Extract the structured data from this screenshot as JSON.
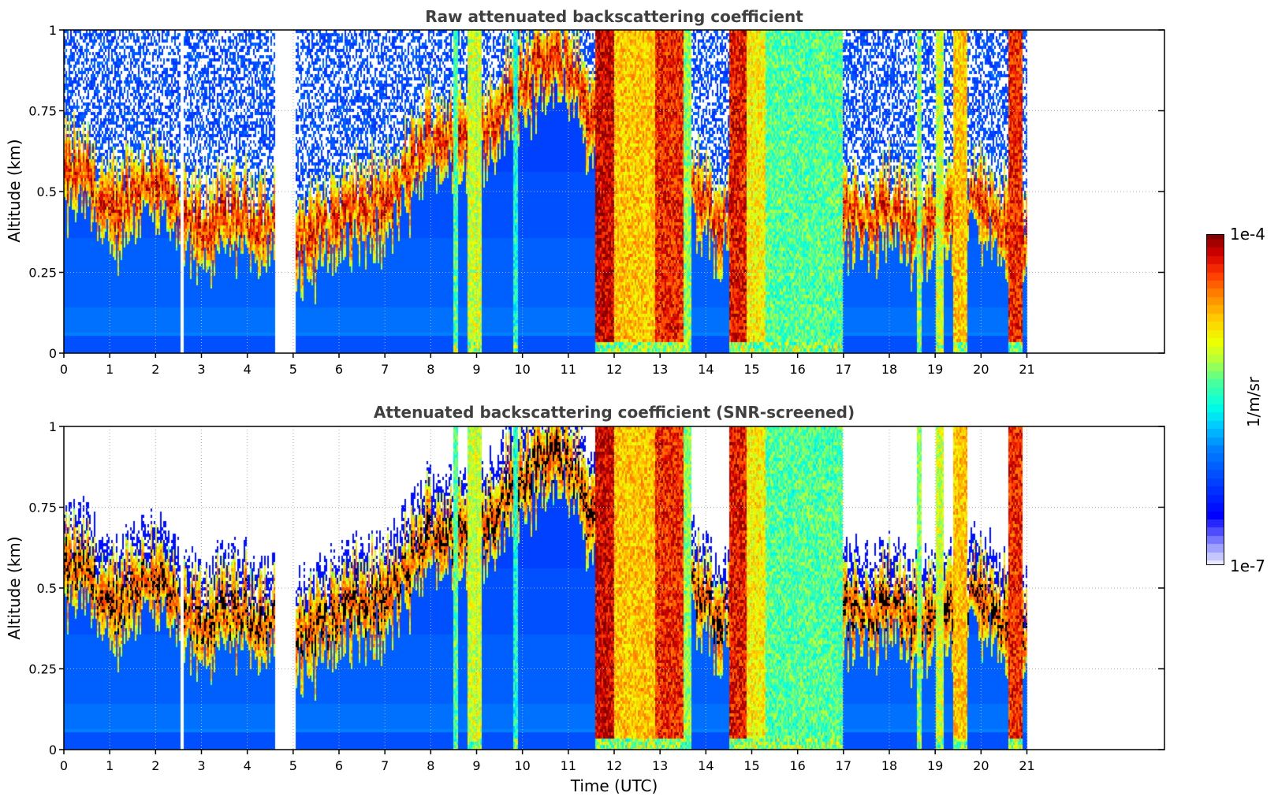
{
  "chart_data": [
    {
      "type": "heatmap",
      "title": "Raw attenuated backscattering coefficient",
      "xlabel": "",
      "ylabel": "Altitude (km)",
      "xlim": [
        0,
        24
      ],
      "ylim": [
        0,
        1
      ],
      "xticks": [
        "0",
        "1",
        "2",
        "3",
        "4",
        "5",
        "6",
        "7",
        "8",
        "9",
        "10",
        "11",
        "12",
        "13",
        "14",
        "15",
        "16",
        "17",
        "18",
        "19",
        "20",
        "21"
      ],
      "yticks": [
        "0",
        "0.25",
        "0.5",
        "0.75",
        "1"
      ],
      "grid": true,
      "screened": false
    },
    {
      "type": "heatmap",
      "title": "Attenuated backscattering coefficient (SNR-screened)",
      "xlabel": "Time (UTC)",
      "ylabel": "Altitude (km)",
      "xlim": [
        0,
        24
      ],
      "ylim": [
        0,
        1
      ],
      "xticks": [
        "0",
        "1",
        "2",
        "3",
        "4",
        "5",
        "6",
        "7",
        "8",
        "9",
        "10",
        "11",
        "12",
        "13",
        "14",
        "15",
        "16",
        "17",
        "18",
        "19",
        "20",
        "21"
      ],
      "yticks": [
        "0",
        "0.25",
        "0.5",
        "0.75",
        "1"
      ],
      "grid": true,
      "screened": true
    }
  ],
  "shared_data": {
    "data_end_hour": 21.0,
    "data_gap_hours": [
      [
        4.62,
        5.07
      ]
    ],
    "cloud_layer_km": [
      [
        0.0,
        0.55
      ],
      [
        0.5,
        0.55
      ],
      [
        1.0,
        0.42
      ],
      [
        1.5,
        0.5
      ],
      [
        2.0,
        0.55
      ],
      [
        2.5,
        0.42
      ],
      [
        3.0,
        0.38
      ],
      [
        3.5,
        0.42
      ],
      [
        4.0,
        0.42
      ],
      [
        4.6,
        0.38
      ],
      [
        5.1,
        0.36
      ],
      [
        5.5,
        0.37
      ],
      [
        6.0,
        0.42
      ],
      [
        6.5,
        0.45
      ],
      [
        7.0,
        0.45
      ],
      [
        7.5,
        0.55
      ],
      [
        8.0,
        0.68
      ],
      [
        8.5,
        0.65
      ],
      [
        9.0,
        0.68
      ],
      [
        9.5,
        0.75
      ],
      [
        10.0,
        0.85
      ],
      [
        10.5,
        0.9
      ],
      [
        11.0,
        0.9
      ],
      [
        11.6,
        0.7
      ],
      [
        12.0,
        0.6
      ],
      [
        13.0,
        0.55
      ],
      [
        13.5,
        0.52
      ],
      [
        14.0,
        0.45
      ],
      [
        14.5,
        0.4
      ],
      [
        15.0,
        0.35
      ],
      [
        15.5,
        0.38
      ],
      [
        16.0,
        0.42
      ],
      [
        16.5,
        0.43
      ],
      [
        17.0,
        0.45
      ],
      [
        17.5,
        0.42
      ],
      [
        18.0,
        0.45
      ],
      [
        18.5,
        0.38
      ],
      [
        19.0,
        0.45
      ],
      [
        19.5,
        0.42
      ],
      [
        20.0,
        0.5
      ],
      [
        20.5,
        0.4
      ],
      [
        21.0,
        0.35
      ]
    ],
    "precip_columns_hours": [
      [
        11.6,
        12.0,
        0.95
      ],
      [
        12.0,
        12.9,
        0.75
      ],
      [
        12.9,
        13.5,
        0.9
      ],
      [
        13.5,
        13.7,
        0.6
      ],
      [
        14.5,
        14.9,
        0.92
      ],
      [
        14.9,
        15.3,
        0.7
      ],
      [
        15.3,
        17.0,
        0.55
      ],
      [
        8.8,
        9.1,
        0.65
      ],
      [
        8.5,
        8.6,
        0.55
      ],
      [
        9.8,
        9.9,
        0.5
      ],
      [
        18.6,
        18.7,
        0.6
      ],
      [
        19.0,
        19.2,
        0.65
      ],
      [
        19.4,
        19.7,
        0.75
      ],
      [
        20.6,
        20.9,
        0.9
      ]
    ],
    "colorbar": {
      "min_label": "1e-7",
      "max_label": "1e-4",
      "unit": "1/m/sr",
      "scale": "log",
      "range": [
        1e-07,
        0.0001
      ]
    }
  }
}
